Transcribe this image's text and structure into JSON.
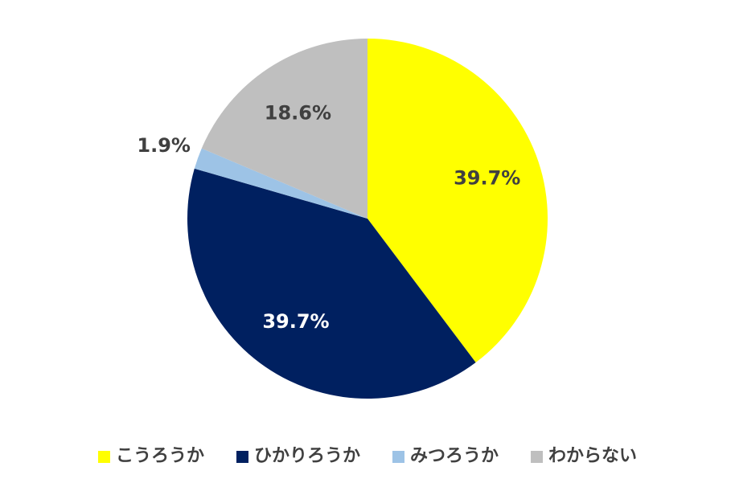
{
  "chart_data": {
    "type": "pie",
    "categories": [
      "こうろうか",
      "ひかりろうか",
      "みつろうか",
      "わからない"
    ],
    "values": [
      39.7,
      39.7,
      1.9,
      18.6
    ],
    "value_labels": [
      "39.7%",
      "39.7%",
      "1.9%",
      "18.6%"
    ],
    "colors": [
      "#FFFF00",
      "#002060",
      "#9DC3E6",
      "#BFBFBF"
    ],
    "legend": "bottom"
  }
}
